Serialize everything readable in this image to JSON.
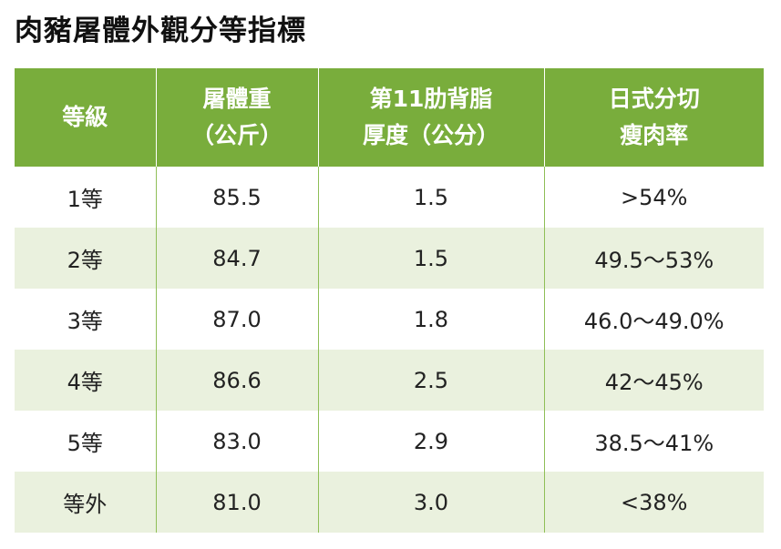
{
  "title": "肉豬屠體外觀分等指標",
  "table": {
    "headers": [
      {
        "lines": [
          "等級"
        ]
      },
      {
        "lines": [
          "屠體重",
          "（公斤）"
        ]
      },
      {
        "lines": [
          "第11肋背脂",
          "厚度（公分）"
        ]
      },
      {
        "lines": [
          "日式分切",
          "瘦肉率"
        ]
      }
    ],
    "rows": [
      [
        "1等",
        "85.5",
        "1.5",
        ">54%"
      ],
      [
        "2等",
        "84.7",
        "1.5",
        "49.5～53%"
      ],
      [
        "3等",
        "87.0",
        "1.8",
        "46.0～49.0%"
      ],
      [
        "4等",
        "86.6",
        "2.5",
        "42～45%"
      ],
      [
        "5等",
        "83.0",
        "2.9",
        "38.5～41%"
      ],
      [
        "等外",
        "81.0",
        "3.0",
        "<38%"
      ]
    ]
  },
  "colors": {
    "header_bg": "#79ad3c",
    "row_alt_bg": "#eaf1de",
    "divider": "#8fbf57"
  }
}
